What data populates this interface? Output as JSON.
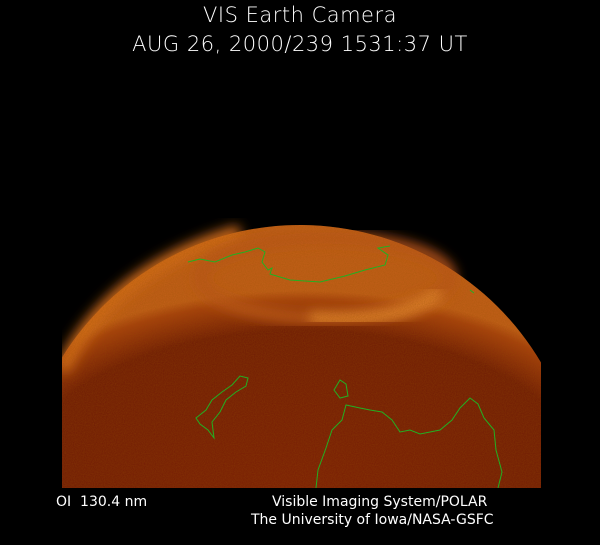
{
  "header": {
    "title": "VIS Earth Camera",
    "timestamp": "AUG 26, 2000/239 1531:37 UT"
  },
  "footer": {
    "band": "OI  130.4 nm",
    "system": "Visible Imaging System/POLAR",
    "credit": "The University of Iowa/NASA-GSFC"
  },
  "colors": {
    "background": "#000000",
    "disk": "#6a1a08",
    "aurora": "#e07a28",
    "coastline": "#22b022"
  }
}
